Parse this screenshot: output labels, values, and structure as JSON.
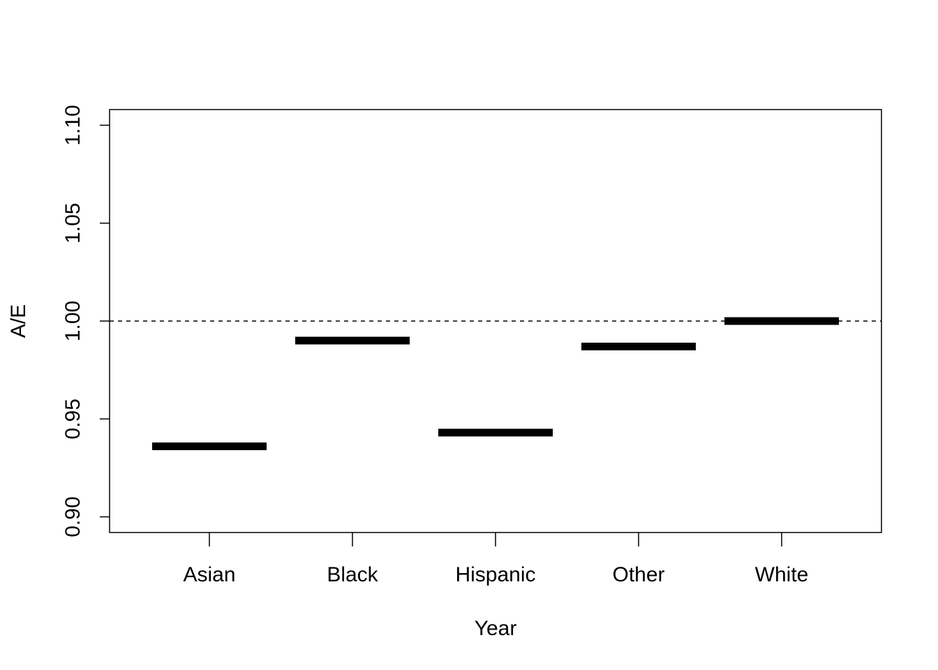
{
  "chart_data": {
    "type": "bar",
    "categories": [
      "Asian",
      "Black",
      "Hispanic",
      "Other",
      "White"
    ],
    "values": [
      0.936,
      0.99,
      0.943,
      0.987,
      1.0
    ],
    "xlabel": "Year",
    "ylabel": "A/E",
    "ylim": [
      0.892,
      1.108
    ],
    "yticks": [
      0.9,
      0.95,
      1.0,
      1.05,
      1.1
    ],
    "ytick_labels": [
      "0.90",
      "0.95",
      "1.00",
      "1.05",
      "1.10"
    ],
    "reference_line": 1.0,
    "grid": false,
    "colors": {
      "marks": "#000000",
      "axis": "#000000",
      "background": "#ffffff"
    }
  }
}
